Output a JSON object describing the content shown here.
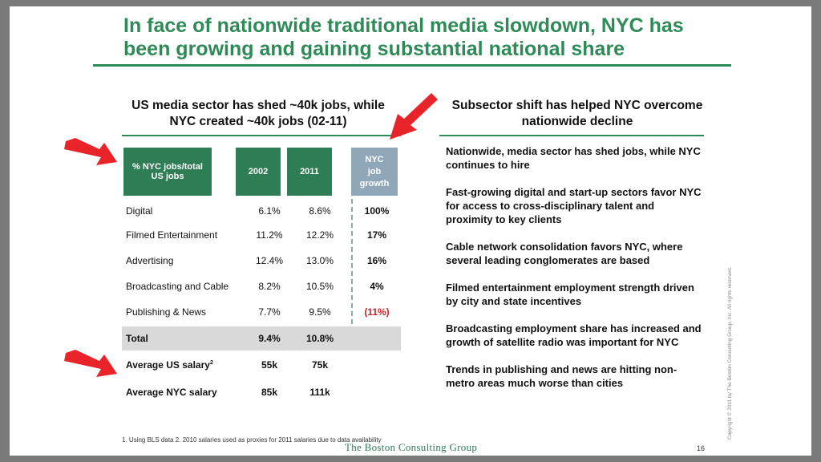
{
  "title": "In face of nationwide traditional media slowdown, NYC has been growing and gaining substantial national share",
  "left_heading": "US media sector has shed ~40k jobs, while NYC created ~40k jobs (02-11)",
  "right_heading": "Subsector shift has helped NYC overcome nationwide decline",
  "table": {
    "header_label": "% NYC jobs/total\nUS jobs",
    "header_2002": "2002",
    "header_2011": "2011",
    "header_growth": "NYC\njob\ngrowth",
    "rows": [
      {
        "name": "Digital",
        "v2002": "6.1%",
        "v2011": "8.6%",
        "growth": "100%"
      },
      {
        "name": "Filmed Entertainment",
        "v2002": "11.2%",
        "v2011": "12.2%",
        "growth": "17%"
      },
      {
        "name": "Advertising",
        "v2002": "12.4%",
        "v2011": "13.0%",
        "growth": "16%"
      },
      {
        "name": "Broadcasting and Cable",
        "v2002": "8.2%",
        "v2011": "10.5%",
        "growth": "4%"
      },
      {
        "name": "Publishing & News",
        "v2002": "7.7%",
        "v2011": "9.5%",
        "growth": "(11%)"
      }
    ],
    "total": {
      "name": "Total",
      "v2002": "9.4%",
      "v2011": "10.8%"
    },
    "salary_us": {
      "name": "Average US salary",
      "sup": "2",
      "v2002": "55k",
      "v2011": "75k"
    },
    "salary_nyc": {
      "name": "Average NYC salary",
      "v2002": "85k",
      "v2011": "111k"
    }
  },
  "bullets": [
    "Nationwide, media sector has shed jobs, while NYC continues to hire",
    "Fast-growing digital and start-up sectors favor NYC for access to cross-disciplinary talent and proximity to key clients",
    "Cable network consolidation favors NYC, where several leading conglomerates are based",
    "Filmed entertainment employment strength driven by city and state incentives",
    "Broadcasting employment share has increased and growth of satellite radio was important for NYC",
    "Trends in publishing and news are hitting non-metro areas much worse than cities"
  ],
  "footnote": "1. Using BLS data  2. 2010 salaries used as proxies for 2011 salaries due to data availability",
  "brand": "The Boston Consulting Group",
  "page_number": "16",
  "copyright": "Copyright © 2011 by The Boston Consulting Group, Inc. All rights reserved.",
  "colors": {
    "accent_green": "#2e8b57",
    "header_green": "#2e7d55",
    "growth_blue": "#8fa7b8",
    "arrow_red": "#e8242a",
    "negative_red": "#c0282c"
  }
}
